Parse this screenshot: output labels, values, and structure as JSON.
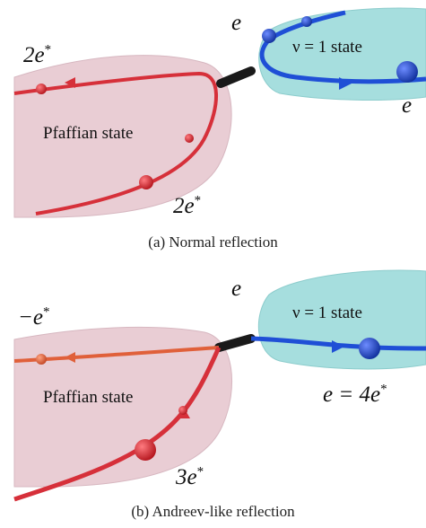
{
  "panel_a": {
    "top_left_charge": "2e",
    "top_left_sup": "*",
    "electron_top": "e",
    "electron_right": "e",
    "state_right": "ν = 1 state",
    "state_left": "Pfaffian state",
    "bottom_charge": "2e",
    "bottom_sup": "*",
    "caption": "(a) Normal reflection"
  },
  "panel_b": {
    "top_left_charge": "−e",
    "top_left_sup": "*",
    "electron_top": "e",
    "state_right": "ν = 1 state",
    "state_left": "Pfaffian state",
    "right_charge": "e = 4e",
    "right_sup": "*",
    "bottom_charge": "3e",
    "bottom_sup": "*",
    "caption": "(b) Andreev-like reflection"
  },
  "colors": {
    "pfaffian_fill": "#e9cdd4",
    "nu1_fill": "#a6dede",
    "red_edge": "#d6303a",
    "blue_edge": "#1f4fd6",
    "orange_edge": "#e0603a",
    "contact": "#1a1a1a"
  }
}
